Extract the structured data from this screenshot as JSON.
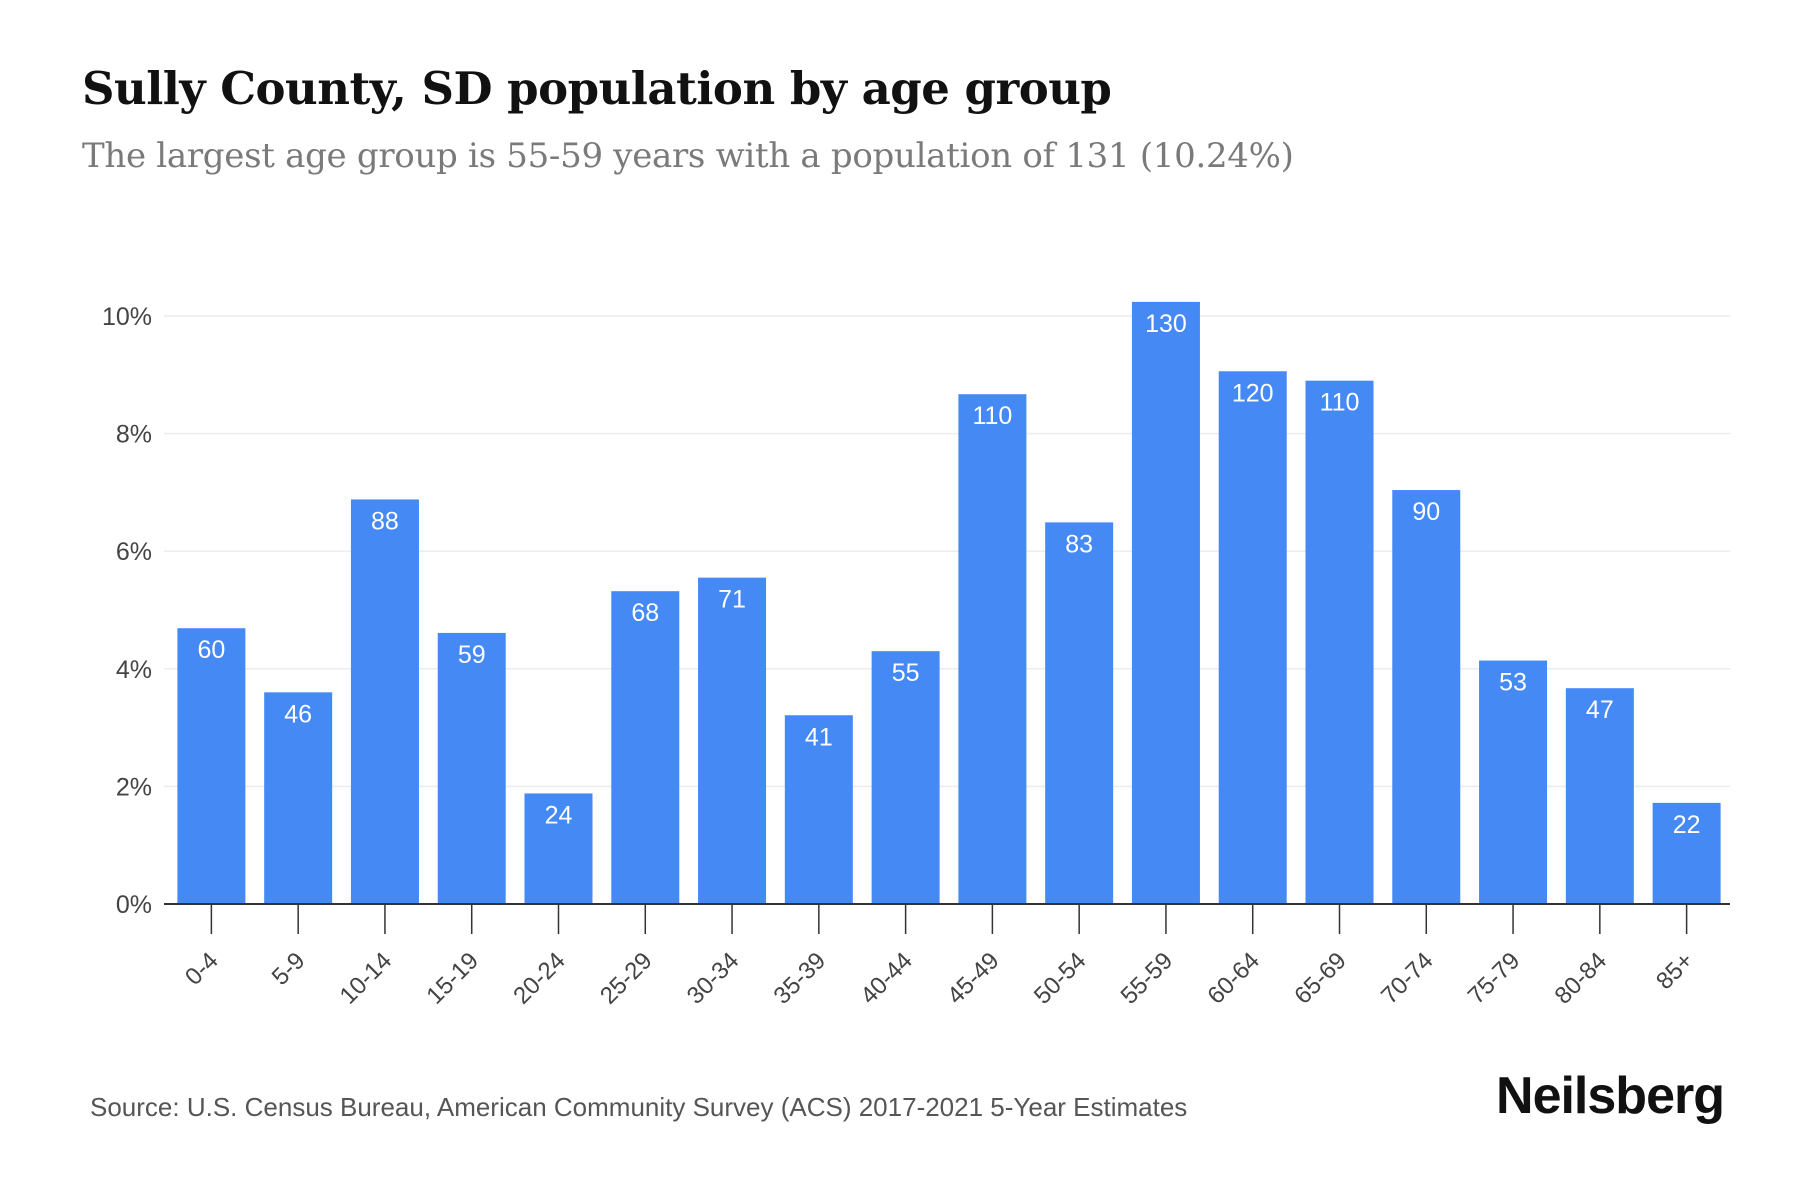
{
  "header": {
    "title": "Sully County, SD population by age group",
    "subtitle": "The largest age group is 55-59 years with a population of 131 (10.24%)"
  },
  "footer": {
    "source": "Source: U.S. Census Bureau, American Community Survey (ACS) 2017-2021 5-Year Estimates",
    "brand": "Neilsberg"
  },
  "colors": {
    "bar": "#4589f5",
    "grid": "#ececec",
    "axis": "#333333",
    "tick_label": "#444444",
    "bar_label": "#ffffff"
  },
  "chart_data": {
    "type": "bar",
    "categories": [
      "0-4",
      "5-9",
      "10-14",
      "15-19",
      "20-24",
      "25-29",
      "30-34",
      "35-39",
      "40-44",
      "45-49",
      "50-54",
      "55-59",
      "60-64",
      "65-69",
      "70-74",
      "75-79",
      "80-84",
      "85+"
    ],
    "values": [
      4.69,
      3.6,
      6.88,
      4.61,
      1.88,
      5.32,
      5.55,
      3.21,
      4.3,
      8.67,
      6.49,
      10.24,
      9.06,
      8.9,
      7.04,
      4.14,
      3.67,
      1.72
    ],
    "data_labels": [
      "60",
      "46",
      "88",
      "59",
      "24",
      "68",
      "71",
      "41",
      "55",
      "110",
      "83",
      "130",
      "120",
      "110",
      "90",
      "53",
      "47",
      "22"
    ],
    "y_ticks": [
      "0%",
      "2%",
      "4%",
      "6%",
      "8%",
      "10%"
    ],
    "y_tick_values": [
      0,
      2,
      4,
      6,
      8,
      10
    ],
    "ylim": [
      0,
      10.24
    ],
    "grid": true,
    "legend": "none",
    "xlabel": "",
    "ylabel": ""
  }
}
